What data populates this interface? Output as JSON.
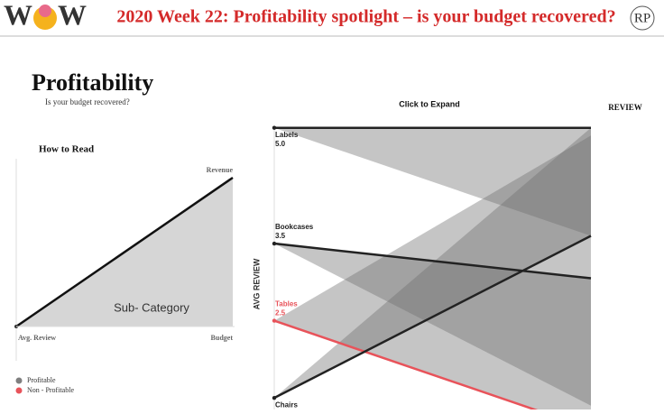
{
  "header": {
    "logo_letters": [
      "W",
      "W"
    ],
    "title": "2020 Week 22: Profitability spotlight – is your budget recovered?",
    "logo_right": "RP"
  },
  "intro": {
    "title": "Profitability",
    "subtitle": "Is your budget recovered?"
  },
  "how_to_read": {
    "title": "How to Read",
    "top_label": "Revenue",
    "center_label": "Sub- Category",
    "x_start_label": "Avg. Review",
    "x_end_label": "Budget"
  },
  "legend": [
    {
      "label": "Profitable",
      "color": "#7f7f7f"
    },
    {
      "label": "Non - Profitable",
      "color": "#e8535a"
    }
  ],
  "chart_data": {
    "type": "slope",
    "title": "Click to Expand",
    "right_label": "REVIEW",
    "y_label": "AVG REVIEW",
    "ylim": [
      1.35,
      5.02
    ],
    "categories": [
      "Labels",
      "Bookcases",
      "Tables",
      "Chairs"
    ],
    "values": [
      5.0,
      3.5,
      2.5,
      1.5
    ],
    "value_labels": [
      "5.0",
      "3.5",
      "2.5",
      null
    ],
    "end_values": [
      5.0,
      3.05,
      1.1,
      3.6
    ],
    "band_end_values": [
      3.6,
      1.4,
      4.9,
      5.0
    ],
    "colors": [
      "#222222",
      "#222222",
      "#e8535a",
      "#222222"
    ]
  }
}
